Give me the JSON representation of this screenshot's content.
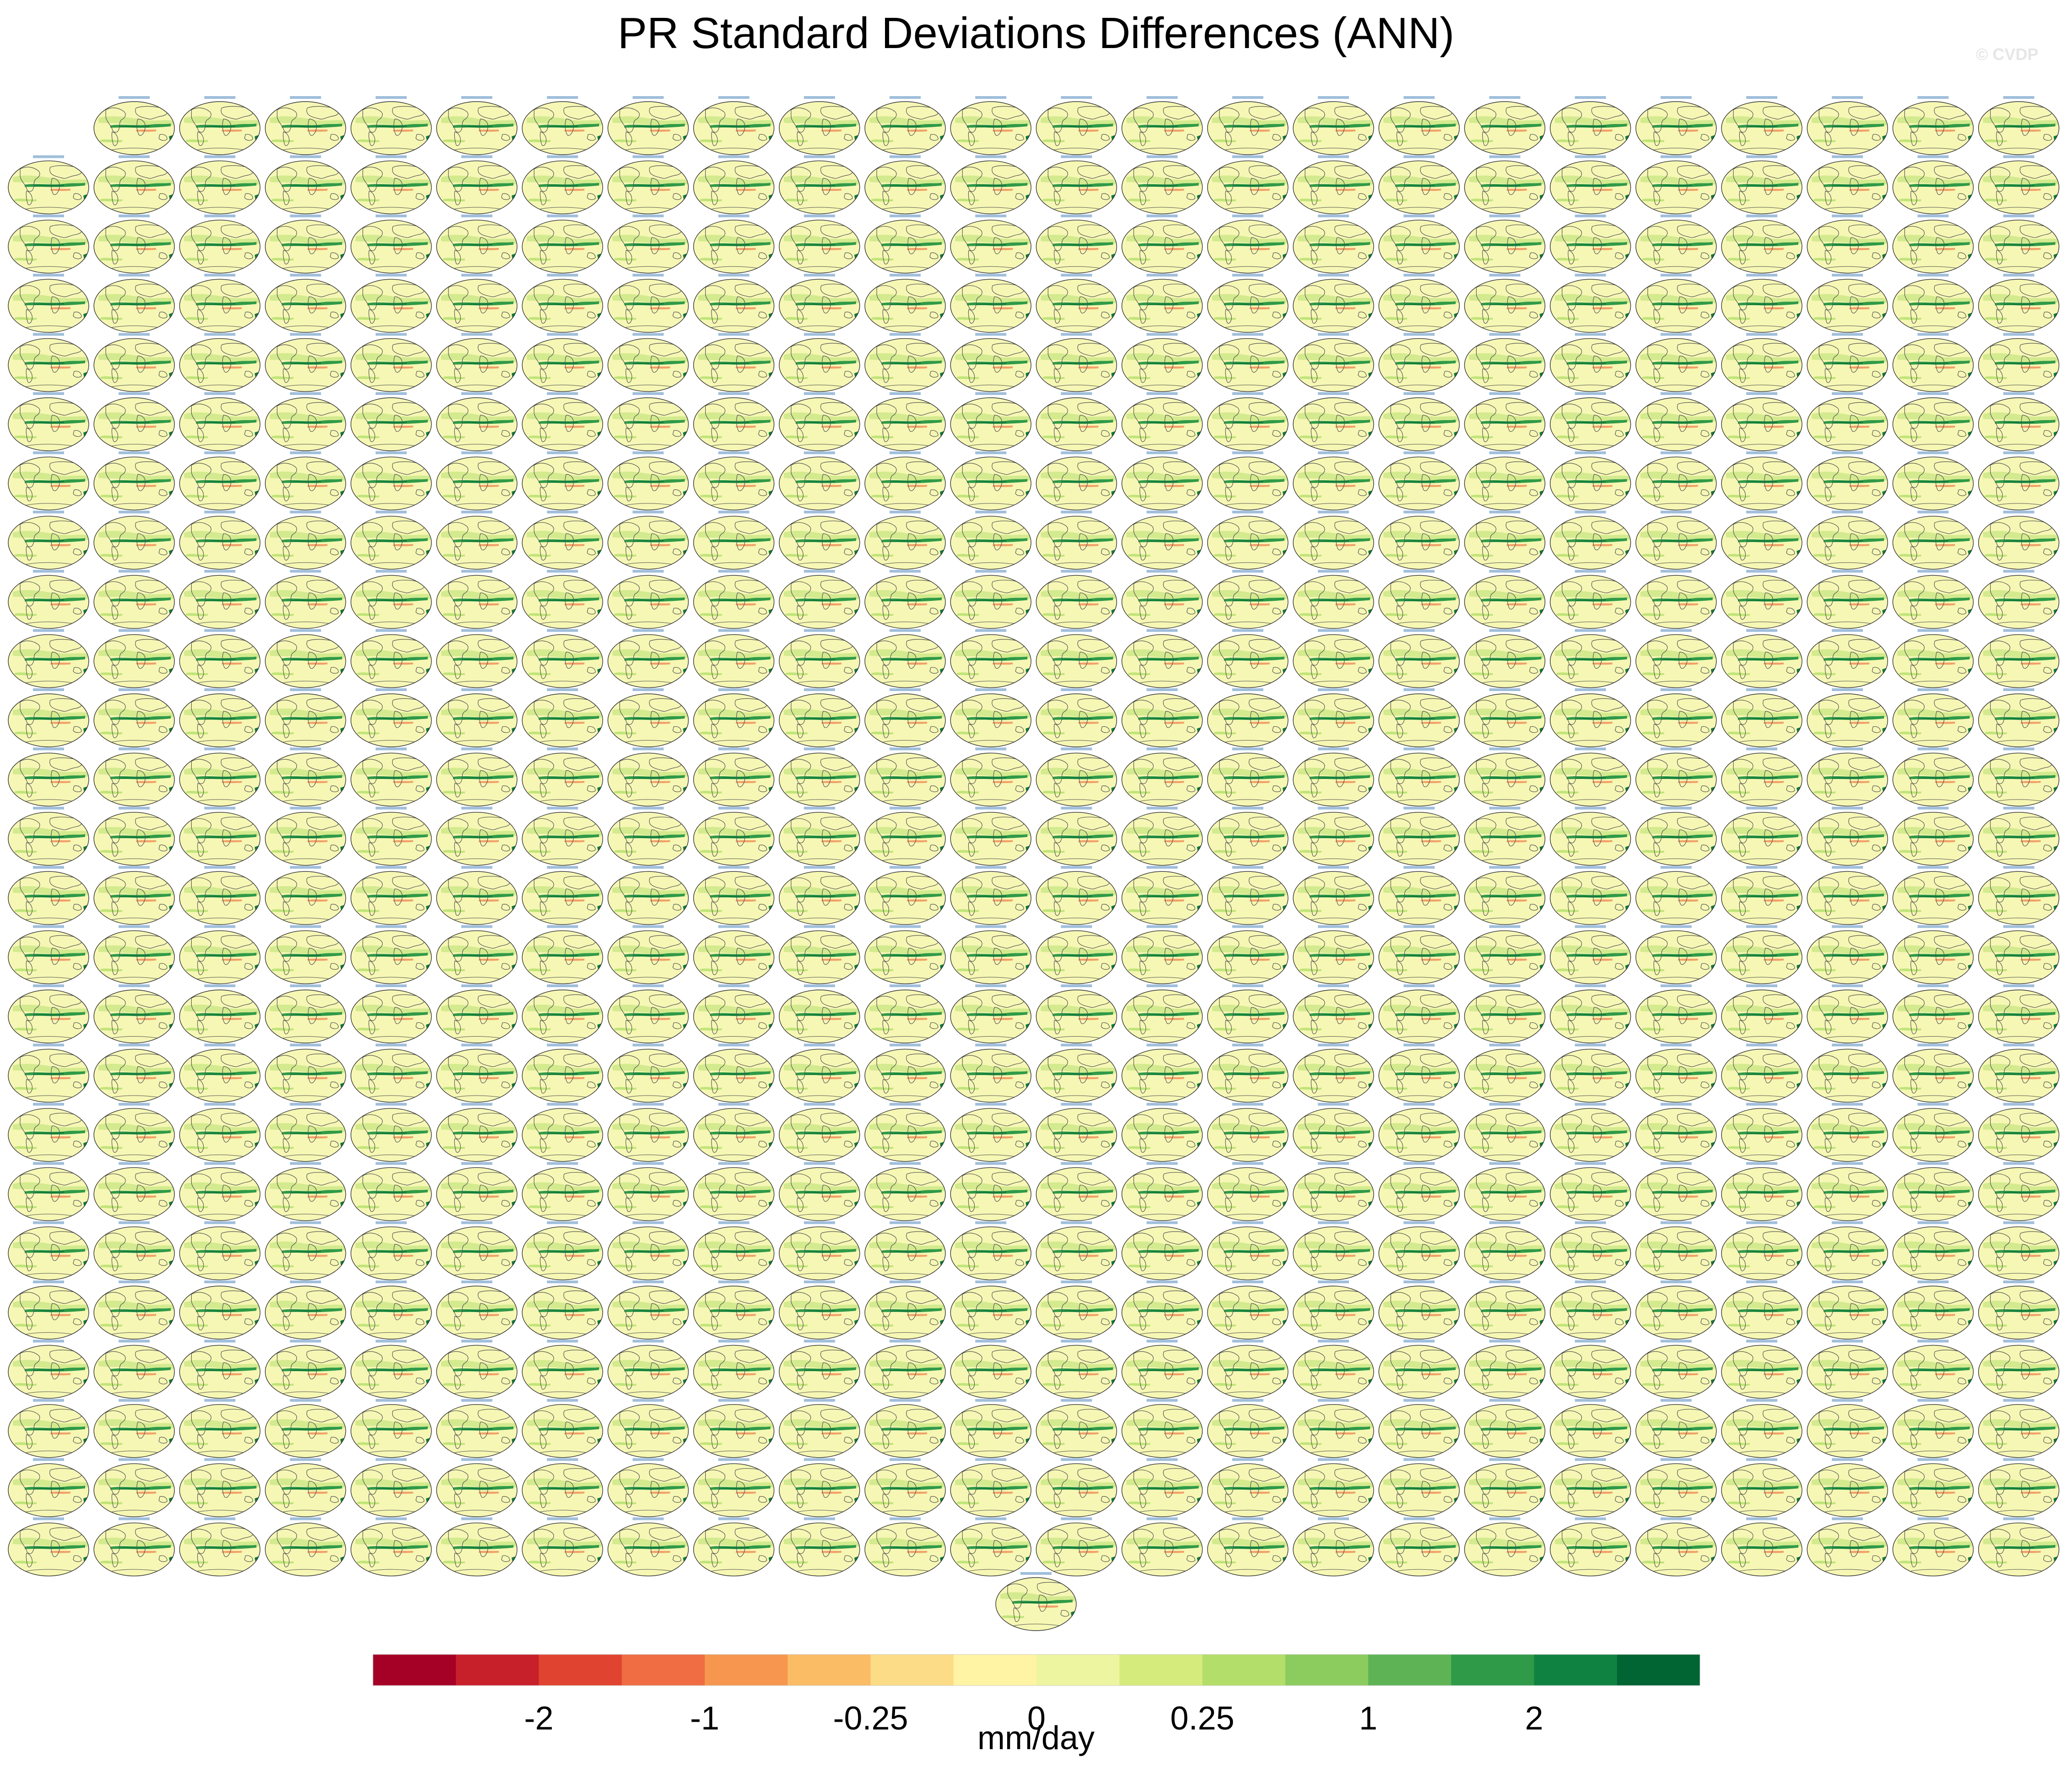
{
  "title": "PR Standard Deviations Differences (ANN)",
  "watermark": "© CVDP",
  "units": "mm/day",
  "chart_data": {
    "type": "heatmap",
    "title": "PR Standard Deviations Differences (ANN)",
    "panel_grid": {
      "rows": 25,
      "columns": 24,
      "first_row_starts_at_column": 1,
      "extra_centered_panel": true,
      "panel_map_projection": "Robinson global"
    },
    "colorbar": {
      "label": "mm/day",
      "orientation": "horizontal",
      "position": "bottom",
      "bounds": [
        -3,
        -2,
        -1.5,
        -1,
        -0.5,
        -0.25,
        -0.1,
        0,
        0.1,
        0.25,
        0.5,
        1,
        1.5,
        2,
        3
      ],
      "tick_labels": [
        "-2",
        "-1",
        "-0.25",
        "0",
        "0.25",
        "1",
        "2"
      ],
      "colors": [
        "#a50026",
        "#c8202a",
        "#e04430",
        "#f06c43",
        "#f6964f",
        "#fbbc66",
        "#fddc87",
        "#fff3a4",
        "#eef5a0",
        "#d5ec7d",
        "#b3de6a",
        "#8ccb5e",
        "#5eb455",
        "#2f9a48",
        "#0f8241",
        "#006433"
      ]
    },
    "map_palette": {
      "background": "#f6f7b4",
      "positive": "#2f9a48",
      "strong_positive": "#0f7a3a",
      "negative": "#f08a55",
      "coast": "#555555",
      "panel_title": "#2a6fb0"
    }
  }
}
